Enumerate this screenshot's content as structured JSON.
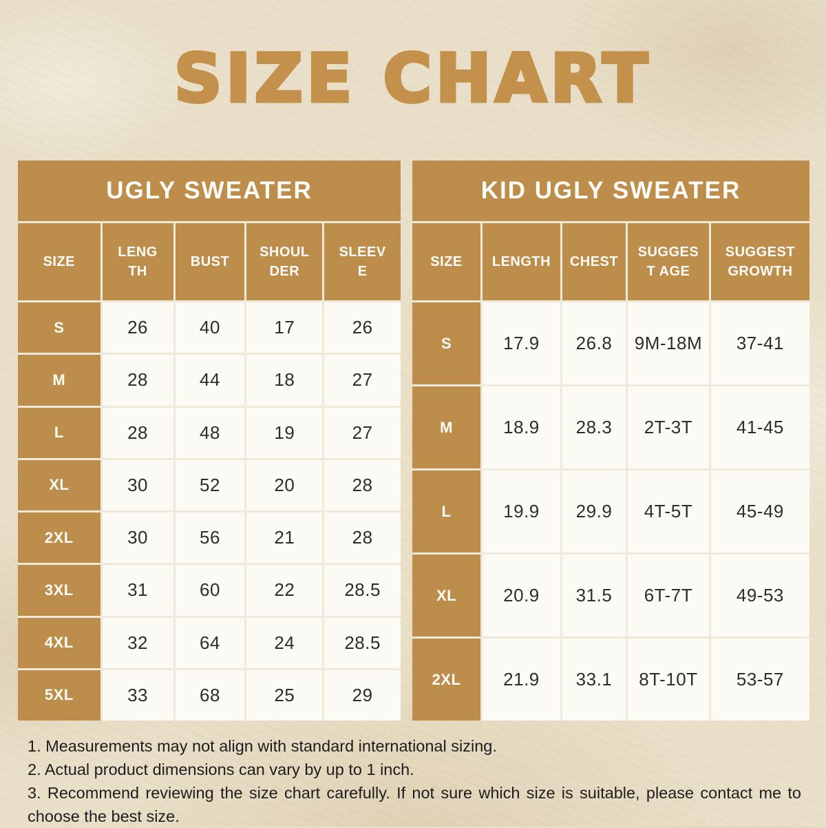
{
  "page": {
    "title": "SIZE CHART",
    "accent_color": "#bd8d4b",
    "background_color": "#e9dfc8",
    "cell_color": "#fcfaf4"
  },
  "tables": [
    {
      "title": "UGLY SWEATER",
      "columns": [
        "SIZE",
        "LENG\nTH",
        "BUST",
        "SHOUL\nDER",
        "SLEEV\nE"
      ],
      "rows": [
        {
          "size": "S",
          "values": [
            "26",
            "40",
            "17",
            "26"
          ]
        },
        {
          "size": "M",
          "values": [
            "28",
            "44",
            "18",
            "27"
          ]
        },
        {
          "size": "L",
          "values": [
            "28",
            "48",
            "19",
            "27"
          ]
        },
        {
          "size": "XL",
          "values": [
            "30",
            "52",
            "20",
            "28"
          ]
        },
        {
          "size": "2XL",
          "values": [
            "30",
            "56",
            "21",
            "28"
          ]
        },
        {
          "size": "3XL",
          "values": [
            "31",
            "60",
            "22",
            "28.5"
          ]
        },
        {
          "size": "4XL",
          "values": [
            "32",
            "64",
            "24",
            "28.5"
          ]
        },
        {
          "size": "5XL",
          "values": [
            "33",
            "68",
            "25",
            "29"
          ]
        }
      ]
    },
    {
      "title": "KID UGLY SWEATER",
      "columns": [
        "SIZE",
        "LENGTH",
        "CHEST",
        "SUGGES\nT AGE",
        "SUGGEST\nGROWTH"
      ],
      "rows": [
        {
          "size": "S",
          "values": [
            "17.9",
            "26.8",
            "9M-18M",
            "37-41"
          ]
        },
        {
          "size": "M",
          "values": [
            "18.9",
            "28.3",
            "2T-3T",
            "41-45"
          ]
        },
        {
          "size": "L",
          "values": [
            "19.9",
            "29.9",
            "4T-5T",
            "45-49"
          ]
        },
        {
          "size": "XL",
          "values": [
            "20.9",
            "31.5",
            "6T-7T",
            "49-53"
          ]
        },
        {
          "size": "2XL",
          "values": [
            "21.9",
            "33.1",
            "8T-10T",
            "53-57"
          ]
        }
      ]
    }
  ],
  "notes": [
    "1. Measurements may not align with standard international sizing.",
    "2. Actual product dimensions can vary by up to 1 inch.",
    "3. Recommend reviewing the size chart carefully. If not sure which size is suitable, please contact me to choose the best size."
  ]
}
